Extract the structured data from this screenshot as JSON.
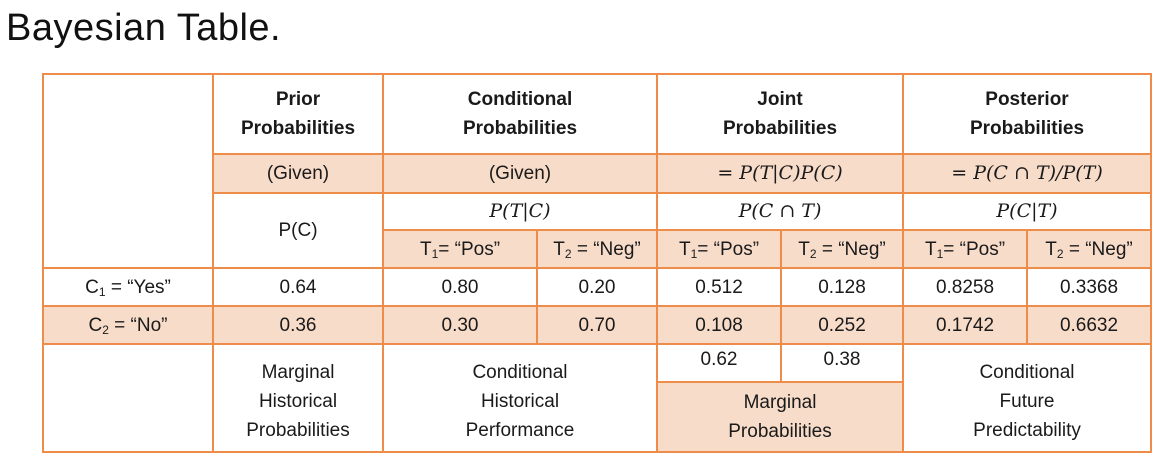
{
  "title": "Bayesian Table.",
  "headers": {
    "prior": [
      "Prior",
      "Probabilities"
    ],
    "conditional": [
      "Conditional",
      "Probabilities"
    ],
    "joint": [
      "Joint",
      "Probabilities"
    ],
    "posterior": [
      "Posterior",
      "Probabilities"
    ]
  },
  "formulas": {
    "prior": "(Given)",
    "conditional": "(Given)",
    "joint": "= P(T|C)P(C)",
    "posterior": "= P(C ∩ T)/P(T)"
  },
  "notation": {
    "prior": "P(C)",
    "conditional": "P(T|C)",
    "joint": "P(C ∩ T)",
    "posterior": "P(C|T)"
  },
  "subheaders": {
    "t1": {
      "sym": "T",
      "sub": "1",
      "rest": "= “Pos”"
    },
    "t2": {
      "sym": "T",
      "sub": "2",
      "rest": " = “Neg”"
    }
  },
  "rows": [
    {
      "label_sym": "C",
      "label_sub": "1",
      "label_rest": " = “Yes”",
      "prior": "0.64",
      "cond_t1": "0.80",
      "cond_t2": "0.20",
      "joint_t1": "0.512",
      "joint_t2": "0.128",
      "post_t1": "0.8258",
      "post_t2": "0.3368"
    },
    {
      "label_sym": "C",
      "label_sub": "2",
      "label_rest": " = “No”",
      "prior": "0.36",
      "cond_t1": "0.30",
      "cond_t2": "0.70",
      "joint_t1": "0.108",
      "joint_t2": "0.252",
      "post_t1": "0.1742",
      "post_t2": "0.6632"
    }
  ],
  "marginal_totals": {
    "t1": "0.62",
    "t2": "0.38"
  },
  "footers": {
    "prior": [
      "Marginal",
      "Historical",
      "Probabilities"
    ],
    "conditional": [
      "Conditional",
      "Historical",
      "Performance"
    ],
    "joint": [
      "Marginal",
      "Probabilities"
    ],
    "posterior": [
      "Conditional",
      "Future",
      "Predictability"
    ]
  }
}
